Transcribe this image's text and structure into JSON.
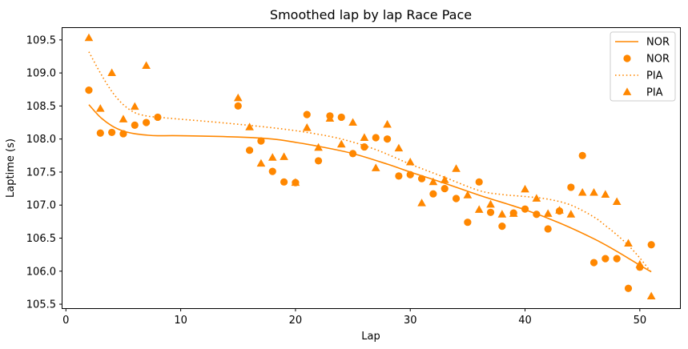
{
  "chart_data": {
    "type": "scatter",
    "title": "Smoothed lap by lap Race Pace",
    "xlabel": "Lap",
    "ylabel": "Laptime (s)",
    "xlim": [
      -0.3,
      53.5
    ],
    "ylim": [
      105.44,
      109.68
    ],
    "xticks": [
      0,
      10,
      20,
      30,
      40,
      50
    ],
    "yticks": [
      105.5,
      106.0,
      106.5,
      107.0,
      107.5,
      108.0,
      108.5,
      109.0,
      109.5
    ],
    "ytick_labels": [
      "105.5",
      "106.0",
      "106.5",
      "107.0",
      "107.5",
      "108.0",
      "108.5",
      "109.0",
      "109.5"
    ],
    "color": "#ff8700",
    "legend_position": "top-right",
    "series": [
      {
        "name": "NOR",
        "kind": "smoothed-line",
        "style": "solid",
        "x": [
          2,
          3,
          4,
          5,
          6,
          7,
          8,
          10,
          15,
          18,
          20,
          22,
          25,
          28,
          30,
          33,
          36,
          40,
          43,
          46,
          48,
          50,
          51
        ],
        "y": [
          108.52,
          108.33,
          108.2,
          108.12,
          108.08,
          108.06,
          108.05,
          108.05,
          108.03,
          108.0,
          107.95,
          107.89,
          107.78,
          107.62,
          107.5,
          107.33,
          107.15,
          106.93,
          106.73,
          106.49,
          106.3,
          106.09,
          105.99
        ]
      },
      {
        "name": "NOR",
        "kind": "scatter",
        "marker": "circle",
        "x": [
          2,
          3,
          4,
          5,
          6,
          7,
          8,
          15,
          16,
          17,
          18,
          19,
          20,
          21,
          22,
          23,
          24,
          25,
          26,
          27,
          28,
          29,
          30,
          31,
          32,
          33,
          34,
          35,
          36,
          37,
          38,
          39,
          40,
          41,
          42,
          43,
          44,
          45,
          46,
          47,
          48,
          49,
          50,
          51
        ],
        "y": [
          108.74,
          108.09,
          108.1,
          108.08,
          108.21,
          108.25,
          108.33,
          108.5,
          107.83,
          107.97,
          107.51,
          107.35,
          107.34,
          108.37,
          107.67,
          108.35,
          108.33,
          107.78,
          107.88,
          108.02,
          108.0,
          107.44,
          107.46,
          107.4,
          107.17,
          107.25,
          107.1,
          106.74,
          107.35,
          106.89,
          106.68,
          106.88,
          106.94,
          106.86,
          106.64,
          106.91,
          107.27,
          107.75,
          106.13,
          106.19,
          106.19,
          105.74,
          106.06,
          106.4
        ]
      },
      {
        "name": "PIA",
        "kind": "smoothed-line",
        "style": "dotted",
        "x": [
          2,
          3,
          4,
          5,
          6,
          7,
          8,
          10,
          14,
          18,
          21,
          24,
          27,
          30,
          33,
          36,
          38,
          40,
          42,
          44,
          46,
          47,
          48,
          49,
          50,
          51
        ],
        "y": [
          109.32,
          109.0,
          108.72,
          108.52,
          108.4,
          108.35,
          108.33,
          108.3,
          108.24,
          108.17,
          108.1,
          108.0,
          107.84,
          107.62,
          107.42,
          107.22,
          107.16,
          107.13,
          107.09,
          107.0,
          106.82,
          106.69,
          106.55,
          106.39,
          106.2,
          105.98
        ]
      },
      {
        "name": "PIA",
        "kind": "scatter",
        "marker": "triangle",
        "x": [
          2,
          3,
          4,
          5,
          6,
          7,
          15,
          16,
          17,
          18,
          19,
          20,
          21,
          22,
          23,
          24,
          25,
          26,
          27,
          28,
          29,
          30,
          31,
          32,
          33,
          34,
          35,
          36,
          37,
          38,
          39,
          40,
          41,
          42,
          43,
          44,
          45,
          46,
          47,
          48,
          49,
          50,
          51
        ],
        "y": [
          109.53,
          108.46,
          109.0,
          108.3,
          108.49,
          109.11,
          108.62,
          108.18,
          107.63,
          107.72,
          107.73,
          107.34,
          108.17,
          107.87,
          108.31,
          107.92,
          108.25,
          108.02,
          107.56,
          108.22,
          107.86,
          107.65,
          107.03,
          107.35,
          107.38,
          107.55,
          107.15,
          106.93,
          107.01,
          106.86,
          106.87,
          107.24,
          107.1,
          106.87,
          106.92,
          106.86,
          107.19,
          107.19,
          107.16,
          107.05,
          106.42,
          106.1,
          105.62
        ]
      }
    ],
    "legend": [
      {
        "label": "NOR",
        "symbol": "solid-line"
      },
      {
        "label": "NOR",
        "symbol": "circle"
      },
      {
        "label": "PIA",
        "symbol": "dotted-line"
      },
      {
        "label": "PIA",
        "symbol": "triangle"
      }
    ]
  }
}
